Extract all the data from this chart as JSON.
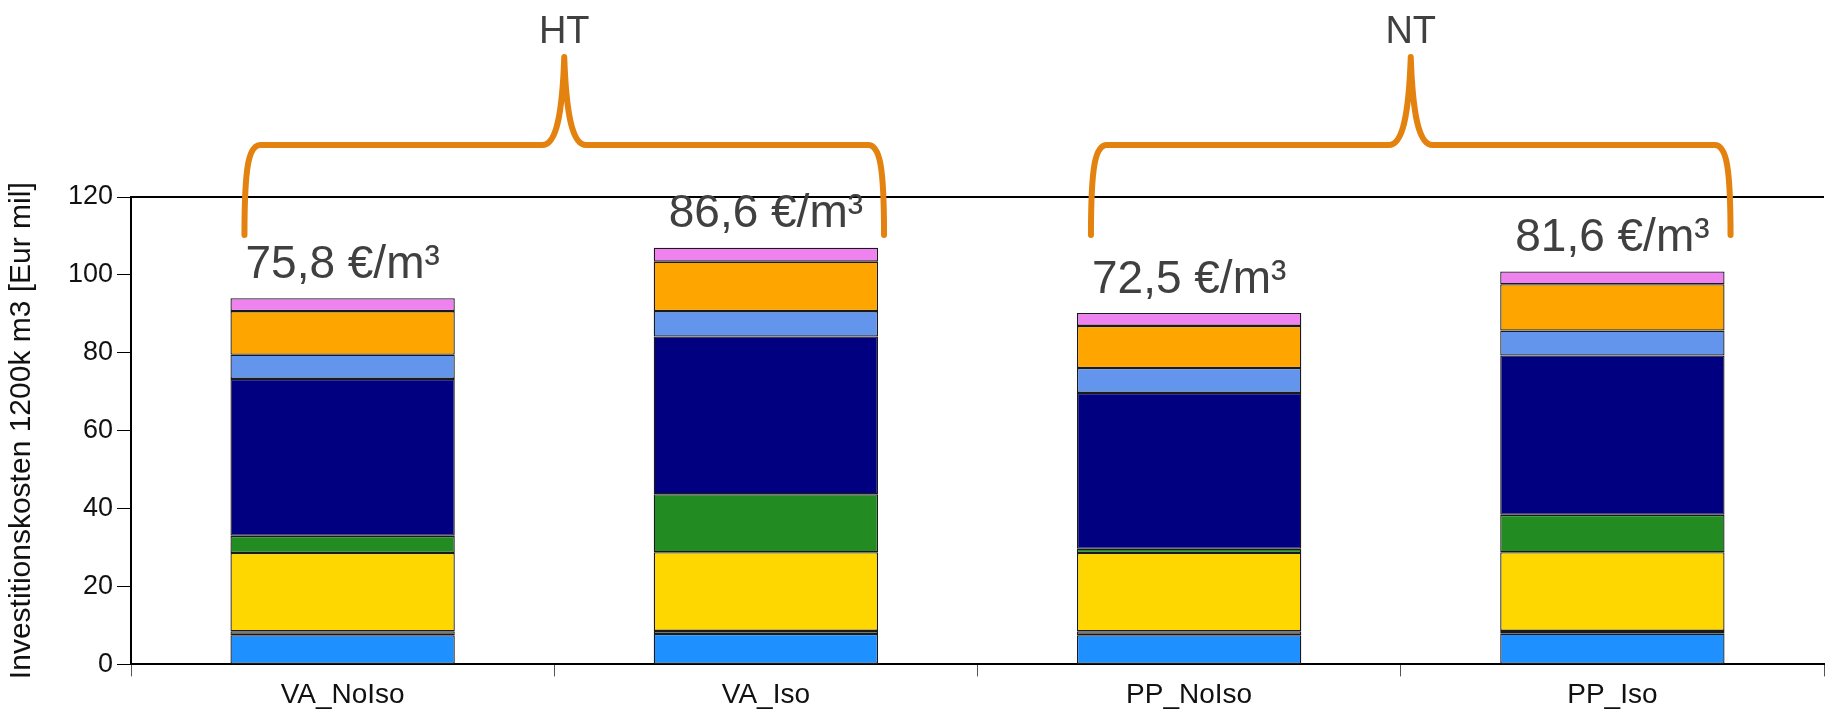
{
  "chart_data": {
    "type": "bar",
    "stacked": true,
    "ylabel": "Investitionskosten 1200k m3 [Eur mil]",
    "categories": [
      "VA_NoIso",
      "VA_Iso",
      "PP_NoIso",
      "PP_Iso"
    ],
    "series": [
      {
        "color": "#1e90ff",
        "values": [
          7.5,
          7.8,
          7.5,
          7.9
        ]
      },
      {
        "color": "#696969",
        "values": [
          1.0,
          0.8,
          1.0,
          0.7
        ]
      },
      {
        "color": "#ffd700",
        "values": [
          20.1,
          20.2,
          20.1,
          20.2
        ]
      },
      {
        "color": "#228b22",
        "values": [
          4.4,
          14.9,
          1.1,
          9.6
        ]
      },
      {
        "color": "#000080",
        "values": [
          40.3,
          40.5,
          40.0,
          40.9
        ]
      },
      {
        "color": "#6495ed",
        "values": [
          6.2,
          6.5,
          6.4,
          6.4
        ]
      },
      {
        "color": "#ffa500",
        "values": [
          11.2,
          12.7,
          10.8,
          11.9
        ]
      },
      {
        "color": "#ee82ee",
        "values": [
          3.3,
          3.6,
          3.3,
          3.3
        ]
      }
    ],
    "ylim": [
      0,
      120
    ],
    "yticks": [
      0,
      20,
      40,
      60,
      80,
      100,
      120
    ],
    "annotations": [
      "HT",
      "NT",
      "75,8 €/m³",
      "86,6 €/m³",
      "72,5 €/m³",
      "81,6 €/m³"
    ]
  }
}
